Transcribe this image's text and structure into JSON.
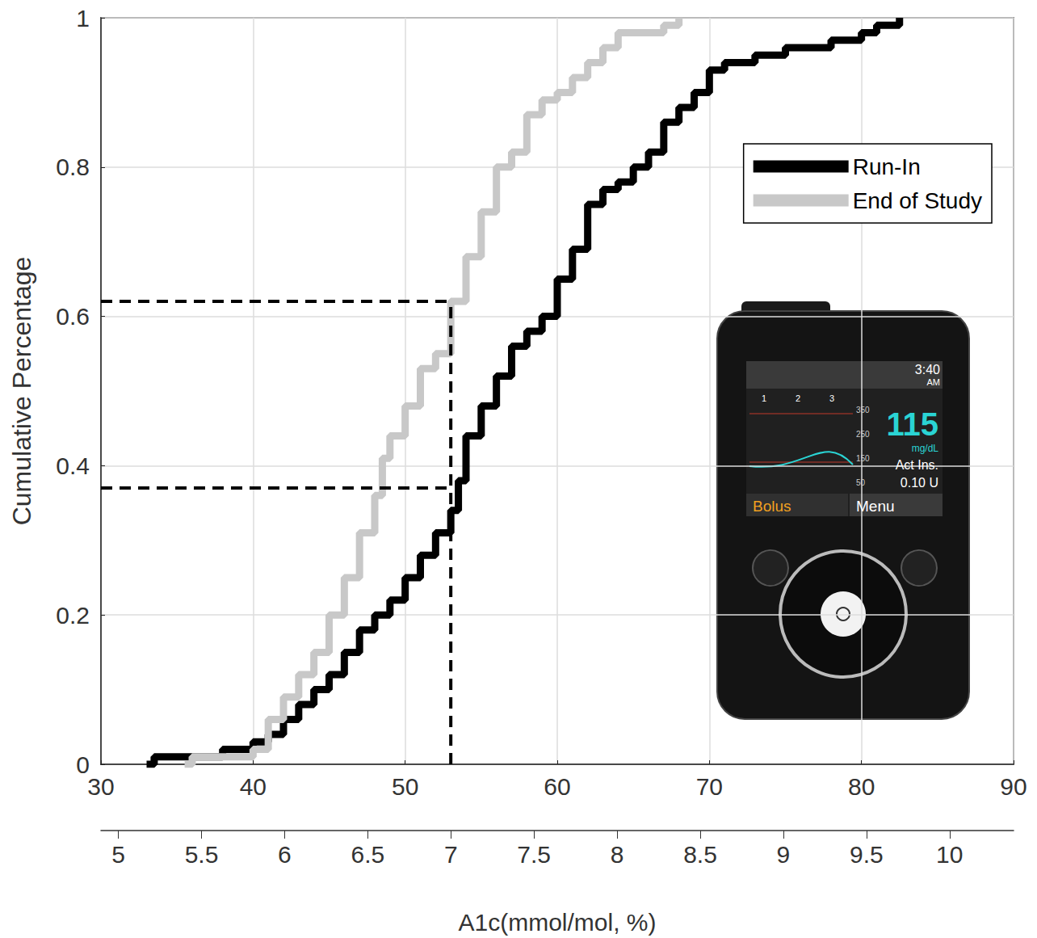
{
  "chart_data": {
    "type": "line",
    "x_label": "A1c(mmol/mol, %)",
    "y_label": "Cumulative Percentage",
    "xlim": [
      30,
      90
    ],
    "xticks": [
      30,
      40,
      50,
      60,
      70,
      80,
      90
    ],
    "x2lim": [
      4.895,
      10.385
    ],
    "x2ticks": [
      5,
      5.5,
      6,
      6.5,
      7,
      7.5,
      8,
      8.5,
      9,
      9.5,
      10
    ],
    "ylim": [
      0,
      1
    ],
    "yticks": [
      0,
      0.2,
      0.4,
      0.6,
      0.8,
      1
    ],
    "grid": true,
    "legend": "top-right",
    "series": [
      {
        "name": "Run-In",
        "color": "#000000",
        "line_style": "step",
        "x": [
          33,
          33.5,
          38,
          40,
          41,
          42,
          43,
          44,
          45,
          46,
          47,
          48,
          49,
          50,
          51,
          52,
          53,
          53.5,
          54,
          55,
          56,
          57,
          58,
          59,
          60,
          61,
          62,
          63,
          64,
          65,
          66,
          67,
          68,
          69,
          70,
          71,
          73,
          75,
          78,
          80,
          81,
          82.5
        ],
        "values": [
          0,
          0.01,
          0.02,
          0.03,
          0.04,
          0.06,
          0.08,
          0.1,
          0.12,
          0.15,
          0.18,
          0.2,
          0.22,
          0.25,
          0.28,
          0.31,
          0.34,
          0.38,
          0.44,
          0.48,
          0.52,
          0.56,
          0.58,
          0.6,
          0.65,
          0.69,
          0.75,
          0.77,
          0.78,
          0.8,
          0.82,
          0.86,
          0.88,
          0.9,
          0.93,
          0.94,
          0.95,
          0.96,
          0.97,
          0.98,
          0.99,
          1
        ]
      },
      {
        "name": "End of Study",
        "color": "#c8c8c8",
        "line_style": "step",
        "x": [
          35.5,
          36,
          40,
          41,
          42,
          43,
          44,
          45,
          46,
          47,
          48,
          48.5,
          49,
          50,
          51,
          52,
          53,
          54,
          55,
          56,
          57,
          58,
          59,
          60,
          61,
          62,
          63,
          64,
          67,
          68
        ],
        "values": [
          0,
          0.01,
          0.02,
          0.06,
          0.09,
          0.12,
          0.15,
          0.2,
          0.25,
          0.31,
          0.36,
          0.41,
          0.44,
          0.48,
          0.53,
          0.55,
          0.62,
          0.68,
          0.74,
          0.8,
          0.82,
          0.87,
          0.89,
          0.9,
          0.92,
          0.94,
          0.96,
          0.98,
          0.99,
          1
        ]
      }
    ],
    "reference_lines": {
      "x": 53,
      "y": [
        0.62,
        0.37
      ],
      "color": "#000000",
      "line_style": "dashed"
    }
  },
  "inset": {
    "clock": "3:40",
    "ampm": "AM",
    "glucose": "115",
    "unit": "mg/dL",
    "active_insulin_label": "Act Ins.",
    "active_insulin": "0.10 U",
    "left_button": "Bolus",
    "right_button": "Menu",
    "graph_levels": [
      "350",
      "250",
      "150",
      "50"
    ],
    "graph_hours": [
      "1",
      "2",
      "3"
    ]
  }
}
